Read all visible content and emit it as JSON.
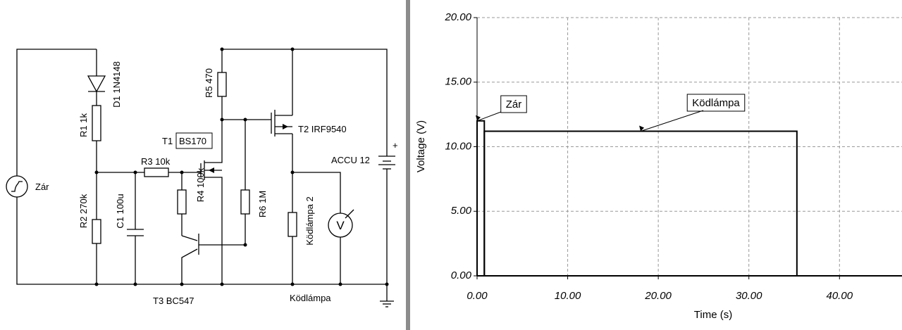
{
  "schematic": {
    "source": "Zár",
    "d1": "D1 1N4148",
    "r1": "R1 1k",
    "r2": "R2 270k",
    "c1": "C1 100u",
    "r3": "R3 10k",
    "t1": "T1",
    "t1_part": "BS170",
    "r4": "R4 100k",
    "t3": "T3 BC547",
    "r5": "R5 470",
    "r6": "R6 1M",
    "t2": "T2 IRF9540",
    "accu": "ACCU 12",
    "plus": "+",
    "lamp2": "Ködlámpa 2",
    "lamp": "Ködlámpa",
    "meter": "V"
  },
  "chart_data": {
    "type": "line",
    "x_label": "Time (s)",
    "y_label": "Voltage (V)",
    "xlim": [
      0,
      46.9
    ],
    "ylim": [
      0,
      20
    ],
    "xticks": [
      {
        "value": 0,
        "label": "0.00"
      },
      {
        "value": 10,
        "label": "10.00"
      },
      {
        "value": 20,
        "label": "20.00"
      },
      {
        "value": 30,
        "label": "30.00"
      },
      {
        "value": 40,
        "label": "40.00"
      }
    ],
    "yticks": [
      {
        "value": 0,
        "label": "0.00"
      },
      {
        "value": 5,
        "label": "5.00"
      },
      {
        "value": 10,
        "label": "10.00"
      },
      {
        "value": 15,
        "label": "15.00"
      },
      {
        "value": 20,
        "label": "20.00"
      }
    ],
    "grid": true,
    "series": [
      {
        "name": "Zár",
        "color": "#000000",
        "x": [
          0,
          0,
          0.8,
          0.8,
          46.9
        ],
        "values": [
          0,
          12,
          12,
          0,
          0
        ]
      },
      {
        "name": "Ködlámpa",
        "color": "#000000",
        "x": [
          0,
          0.8,
          0.8,
          35.3,
          35.3,
          46.9
        ],
        "values": [
          0,
          0,
          11.2,
          11.2,
          0,
          0
        ]
      }
    ]
  }
}
